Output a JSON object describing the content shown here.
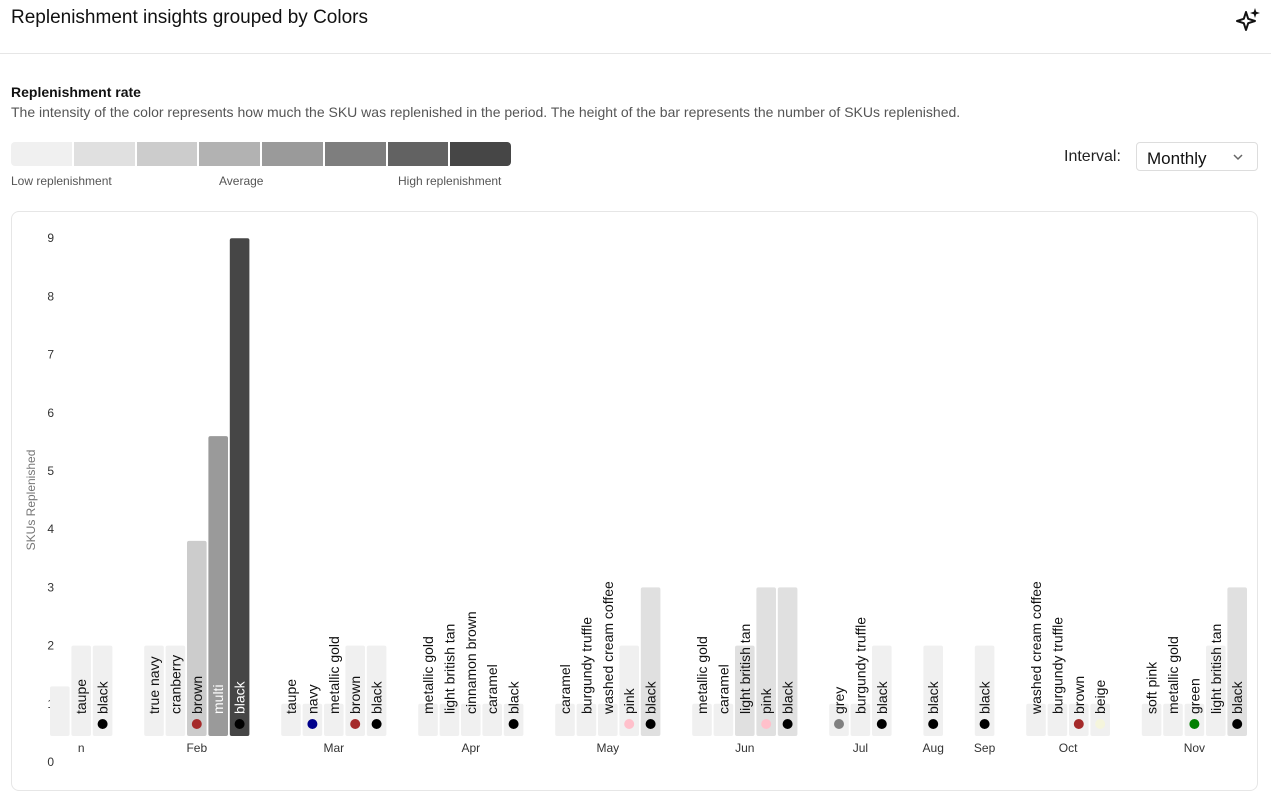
{
  "header": {
    "title": "Replenishment insights grouped by Colors",
    "action_icon": "sparkle-icon"
  },
  "section": {
    "title": "Replenishment rate",
    "description": "The intensity of the color represents how much the SKU was replenished in the period. The height of the bar represents the number of SKUs replenished."
  },
  "legend": {
    "low": "Low replenishment",
    "avg": "Average",
    "high": "High replenishment",
    "colors": [
      "#f0f0f0",
      "#e0e0e0",
      "#cccccc",
      "#b2b2b2",
      "#9a9a9a",
      "#7e7e7e",
      "#626262",
      "#464646"
    ]
  },
  "interval": {
    "label": "Interval:",
    "value": "Monthly"
  },
  "chart_data": {
    "type": "bar",
    "ylabel": "SKUs Replenished",
    "ylim": [
      0,
      9
    ],
    "yticks": [
      0,
      1,
      2,
      3,
      4,
      5,
      6,
      7,
      8,
      9
    ],
    "groups": [
      {
        "month": "Jan",
        "month_label": "n",
        "bars": [
          {
            "name": "",
            "value": 1.3,
            "shade": "#f0f0f0",
            "dot": ""
          },
          {
            "name": "taupe",
            "value": 2,
            "shade": "#f0f0f0",
            "dot": ""
          },
          {
            "name": "black",
            "value": 2,
            "shade": "#f0f0f0",
            "dot": "#000000"
          }
        ]
      },
      {
        "month": "Feb",
        "month_label": "Feb",
        "bars": [
          {
            "name": "true navy",
            "value": 2,
            "shade": "#f0f0f0",
            "dot": ""
          },
          {
            "name": "cranberry",
            "value": 2,
            "shade": "#f0f0f0",
            "dot": ""
          },
          {
            "name": "brown",
            "value": 3.8,
            "shade": "#cccccc",
            "dot": "#a52a2a"
          },
          {
            "name": "multi",
            "value": 5.6,
            "shade": "#9a9a9a",
            "dot": ""
          },
          {
            "name": "black",
            "value": 9,
            "shade": "#464646",
            "dot": "#000000"
          }
        ]
      },
      {
        "month": "Mar",
        "month_label": "Mar",
        "bars": [
          {
            "name": "taupe",
            "value": 1,
            "shade": "#f0f0f0",
            "dot": ""
          },
          {
            "name": "navy",
            "value": 1,
            "shade": "#f0f0f0",
            "dot": "#00008b"
          },
          {
            "name": "metallic gold",
            "value": 1,
            "shade": "#f0f0f0",
            "dot": ""
          },
          {
            "name": "brown",
            "value": 2,
            "shade": "#f0f0f0",
            "dot": "#a52a2a"
          },
          {
            "name": "black",
            "value": 2,
            "shade": "#f0f0f0",
            "dot": "#000000"
          }
        ]
      },
      {
        "month": "Apr",
        "month_label": "Apr",
        "bars": [
          {
            "name": "metallic gold",
            "value": 1,
            "shade": "#f0f0f0",
            "dot": ""
          },
          {
            "name": "light british tan",
            "value": 1,
            "shade": "#f0f0f0",
            "dot": ""
          },
          {
            "name": "cinnamon brown",
            "value": 1,
            "shade": "#f0f0f0",
            "dot": ""
          },
          {
            "name": "caramel",
            "value": 1,
            "shade": "#f0f0f0",
            "dot": ""
          },
          {
            "name": "black",
            "value": 1,
            "shade": "#f0f0f0",
            "dot": "#000000"
          }
        ]
      },
      {
        "month": "May",
        "month_label": "May",
        "bars": [
          {
            "name": "caramel",
            "value": 1,
            "shade": "#f0f0f0",
            "dot": ""
          },
          {
            "name": "burgundy truffle",
            "value": 1,
            "shade": "#f0f0f0",
            "dot": ""
          },
          {
            "name": "washed cream coffee",
            "value": 1,
            "shade": "#f0f0f0",
            "dot": ""
          },
          {
            "name": "pink",
            "value": 2,
            "shade": "#f0f0f0",
            "dot": "#ffc0cb"
          },
          {
            "name": "black",
            "value": 3,
            "shade": "#e0e0e0",
            "dot": "#000000"
          }
        ]
      },
      {
        "month": "Jun",
        "month_label": "Jun",
        "bars": [
          {
            "name": "metallic gold",
            "value": 1,
            "shade": "#f0f0f0",
            "dot": ""
          },
          {
            "name": "caramel",
            "value": 1,
            "shade": "#f0f0f0",
            "dot": ""
          },
          {
            "name": "light british tan",
            "value": 2,
            "shade": "#e0e0e0",
            "dot": ""
          },
          {
            "name": "pink",
            "value": 3,
            "shade": "#e0e0e0",
            "dot": "#ffc0cb"
          },
          {
            "name": "black",
            "value": 3,
            "shade": "#e0e0e0",
            "dot": "#000000"
          }
        ]
      },
      {
        "month": "Jul",
        "month_label": "Jul",
        "bars": [
          {
            "name": "grey",
            "value": 1,
            "shade": "#f0f0f0",
            "dot": "#808080"
          },
          {
            "name": "burgundy truffle",
            "value": 1,
            "shade": "#f0f0f0",
            "dot": ""
          },
          {
            "name": "black",
            "value": 2,
            "shade": "#f0f0f0",
            "dot": "#000000"
          }
        ]
      },
      {
        "month": "Aug",
        "month_label": "Aug",
        "bars": [
          {
            "name": "black",
            "value": 2,
            "shade": "#f0f0f0",
            "dot": "#000000"
          }
        ]
      },
      {
        "month": "Sep",
        "month_label": "Sep",
        "bars": [
          {
            "name": "black",
            "value": 2,
            "shade": "#f0f0f0",
            "dot": "#000000"
          }
        ]
      },
      {
        "month": "Oct",
        "month_label": "Oct",
        "bars": [
          {
            "name": "washed cream coffee",
            "value": 1,
            "shade": "#f0f0f0",
            "dot": ""
          },
          {
            "name": "burgundy truffle",
            "value": 1,
            "shade": "#f0f0f0",
            "dot": ""
          },
          {
            "name": "brown",
            "value": 1,
            "shade": "#f0f0f0",
            "dot": "#a52a2a"
          },
          {
            "name": "beige",
            "value": 1,
            "shade": "#f0f0f0",
            "dot": "#f5f5dc"
          }
        ]
      },
      {
        "month": "Nov",
        "month_label": "Nov",
        "bars": [
          {
            "name": "soft pink",
            "value": 1,
            "shade": "#f0f0f0",
            "dot": ""
          },
          {
            "name": "metallic gold",
            "value": 1,
            "shade": "#f0f0f0",
            "dot": ""
          },
          {
            "name": "green",
            "value": 1,
            "shade": "#f0f0f0",
            "dot": "#008000"
          },
          {
            "name": "light british tan",
            "value": 2,
            "shade": "#f0f0f0",
            "dot": ""
          },
          {
            "name": "black",
            "value": 3,
            "shade": "#e0e0e0",
            "dot": "#000000"
          }
        ]
      }
    ]
  }
}
